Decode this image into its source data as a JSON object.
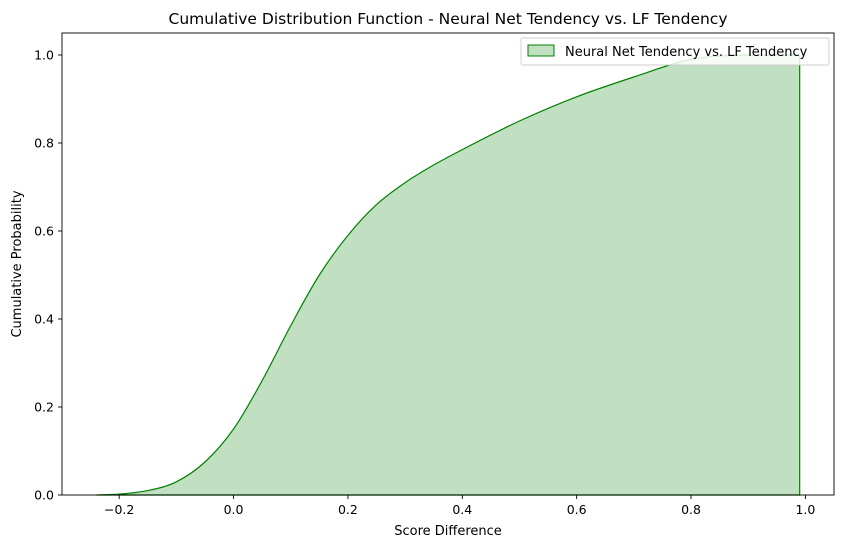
{
  "chart_data": {
    "type": "area",
    "title": "Cumulative Distribution Function - Neural Net Tendency vs. LF Tendency",
    "xlabel": "Score Difference",
    "ylabel": "Cumulative Probability",
    "xlim": [
      -0.3,
      1.05
    ],
    "ylim": [
      0,
      1.05
    ],
    "xticks": [
      -0.2,
      0.0,
      0.2,
      0.4,
      0.6,
      0.8,
      1.0
    ],
    "xtick_labels": [
      "−0.2",
      "0.0",
      "0.2",
      "0.4",
      "0.6",
      "0.8",
      "1.0"
    ],
    "yticks": [
      0.0,
      0.2,
      0.4,
      0.6,
      0.8,
      1.0
    ],
    "ytick_labels": [
      "0.0",
      "0.2",
      "0.4",
      "0.6",
      "0.8",
      "1.0"
    ],
    "grid": false,
    "legend_position": "top-right",
    "series": [
      {
        "name": "Neural Net Tendency vs. LF Tendency",
        "color": "#008000",
        "fill_color": "#c1e0c1",
        "x": [
          -0.24,
          -0.2,
          -0.15,
          -0.1,
          -0.05,
          0.0,
          0.05,
          0.1,
          0.15,
          0.2,
          0.25,
          0.3,
          0.35,
          0.4,
          0.5,
          0.6,
          0.7,
          0.8,
          0.9,
          0.99
        ],
        "y": [
          0.0,
          0.002,
          0.01,
          0.03,
          0.075,
          0.15,
          0.26,
          0.385,
          0.5,
          0.59,
          0.66,
          0.71,
          0.75,
          0.785,
          0.85,
          0.905,
          0.95,
          0.99,
          1.0,
          1.0
        ]
      }
    ]
  }
}
